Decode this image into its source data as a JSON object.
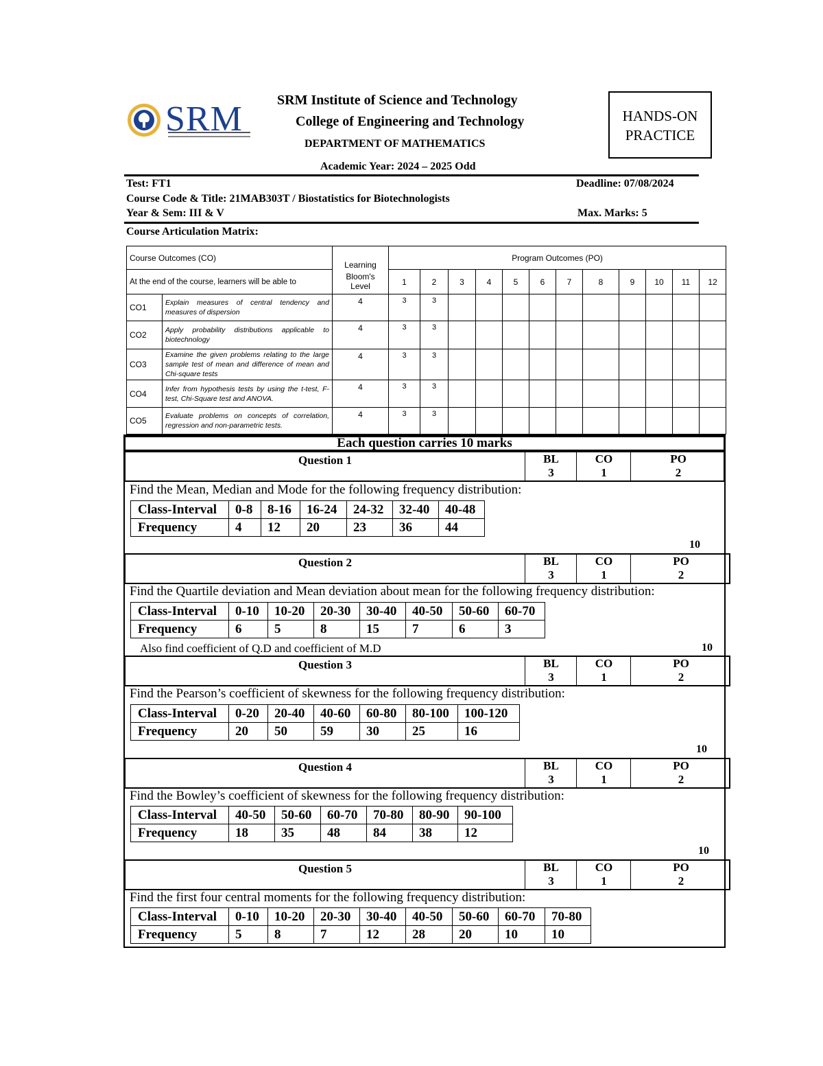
{
  "header": {
    "logo_text": "SRM",
    "institute": "SRM Institute of Science and Technology",
    "college": "College of Engineering and Technology",
    "department": "DEPARTMENT OF MATHEMATICS",
    "academic_year": "Academic Year: 2024 – 2025 Odd",
    "badge_line1": "HANDS-ON",
    "badge_line2": "PRACTICE"
  },
  "info": {
    "test": "Test: FT1",
    "deadline": "Deadline: 07/08/2024",
    "course": "Course Code & Title: 21MAB303T / Biostatistics for Biotechnologists",
    "year_sem": "Year & Sem: III & V",
    "max_marks": "Max. Marks: 5",
    "matrix_title": "Course Articulation Matrix:"
  },
  "co_matrix": {
    "co_header": "Course Outcomes (CO)",
    "learning_header": "Learning",
    "bloom_header": "Bloom's Level",
    "po_header": "Program Outcomes (PO)",
    "intro": "At the end of the course, learners will be able to",
    "po_numbers": [
      "1",
      "2",
      "3",
      "4",
      "5",
      "6",
      "7",
      "8",
      "9",
      "10",
      "11",
      "12"
    ],
    "rows": [
      {
        "co": "CO1",
        "desc": "Explain measures of central tendency and measures of dispersion",
        "bloom": "4",
        "po": [
          "3",
          "3",
          "",
          "",
          "",
          "",
          "",
          "",
          "",
          "",
          "",
          ""
        ]
      },
      {
        "co": "CO2",
        "desc": "Apply probability distributions applicable to biotechnology",
        "bloom": "4",
        "po": [
          "3",
          "3",
          "",
          "",
          "",
          "",
          "",
          "",
          "",
          "",
          "",
          ""
        ]
      },
      {
        "co": "CO3",
        "desc": "Examine the given problems relating to the large sample test of mean and difference of mean and Chi-square tests",
        "bloom": "4",
        "po": [
          "3",
          "3",
          "",
          "",
          "",
          "",
          "",
          "",
          "",
          "",
          "",
          ""
        ]
      },
      {
        "co": "CO4",
        "desc": "Infer from hypothesis tests by using the t-test, F-test, Chi-Square test and ANOVA.",
        "bloom": "4",
        "po": [
          "3",
          "3",
          "",
          "",
          "",
          "",
          "",
          "",
          "",
          "",
          "",
          ""
        ]
      },
      {
        "co": "CO5",
        "desc": "Evaluate problems on concepts of correlation, regression and non-parametric tests.",
        "bloom": "4",
        "po": [
          "3",
          "3",
          "",
          "",
          "",
          "",
          "",
          "",
          "",
          "",
          "",
          ""
        ]
      }
    ]
  },
  "questions_title": "Each question carries 10 marks",
  "questions": [
    {
      "title": "Question 1",
      "bl_label": "BL",
      "bl": "3",
      "co_label": "CO",
      "co": "1",
      "po_label": "PO",
      "po": "2",
      "text": "Find the Mean, Median and Mode for the following frequency distribution:",
      "row1": [
        "Class-Interval",
        "0-8",
        "8-16",
        "16-24",
        "24-32",
        "32-40",
        "40-48"
      ],
      "row2": [
        "Frequency",
        "4",
        "12",
        "20",
        "23",
        "36",
        "44"
      ],
      "note": "",
      "marks": "10"
    },
    {
      "title": "Question 2",
      "bl_label": "BL",
      "bl": "3",
      "co_label": "CO",
      "co": "1",
      "po_label": "PO",
      "po": "2",
      "text": "Find the Quartile deviation and Mean deviation about mean for the following frequency distribution:",
      "row1": [
        "Class-Interval",
        "0-10",
        "10-20",
        "20-30",
        "30-40",
        "40-50",
        "50-60",
        "60-70"
      ],
      "row2": [
        "Frequency",
        "6",
        "5",
        "8",
        "15",
        "7",
        "6",
        "3"
      ],
      "note": "Also find coefficient of Q.D and coefficient of M.D",
      "marks": "10"
    },
    {
      "title": "Question 3",
      "bl_label": "BL",
      "bl": "3",
      "co_label": "CO",
      "co": "1",
      "po_label": "PO",
      "po": "2",
      "text": "Find the Pearson’s coefficient of skewness for the following frequency distribution:",
      "row1": [
        "Class-Interval",
        "0-20",
        "20-40",
        "40-60",
        "60-80",
        "80-100",
        "100-120"
      ],
      "row2": [
        "Frequency",
        "20",
        "50",
        "59",
        "30",
        "25",
        "16"
      ],
      "note": "",
      "marks": "10"
    },
    {
      "title": "Question 4",
      "bl_label": "BL",
      "bl": "3",
      "co_label": "CO",
      "co": "1",
      "po_label": "PO",
      "po": "2",
      "text": "Find the Bowley’s coefficient of skewness for the following frequency distribution:",
      "row1": [
        "Class-Interval",
        "40-50",
        "50-60",
        "60-70",
        "70-80",
        "80-90",
        "90-100"
      ],
      "row2": [
        "Frequency",
        "18",
        "35",
        "48",
        "84",
        "38",
        "12"
      ],
      "note": "",
      "marks": "10"
    },
    {
      "title": "Question 5",
      "bl_label": "BL",
      "bl": "3",
      "co_label": "CO",
      "co": "1",
      "po_label": "PO",
      "po": "2",
      "text": "Find the first four central moments for the following frequency distribution:",
      "row1": [
        "Class-Interval",
        "0-10",
        "10-20",
        "20-30",
        "30-40",
        "40-50",
        "50-60",
        "60-70",
        "70-80"
      ],
      "row2": [
        "Frequency",
        "5",
        "8",
        "7",
        "12",
        "28",
        "20",
        "10",
        "10"
      ],
      "note": "",
      "marks": ""
    }
  ]
}
